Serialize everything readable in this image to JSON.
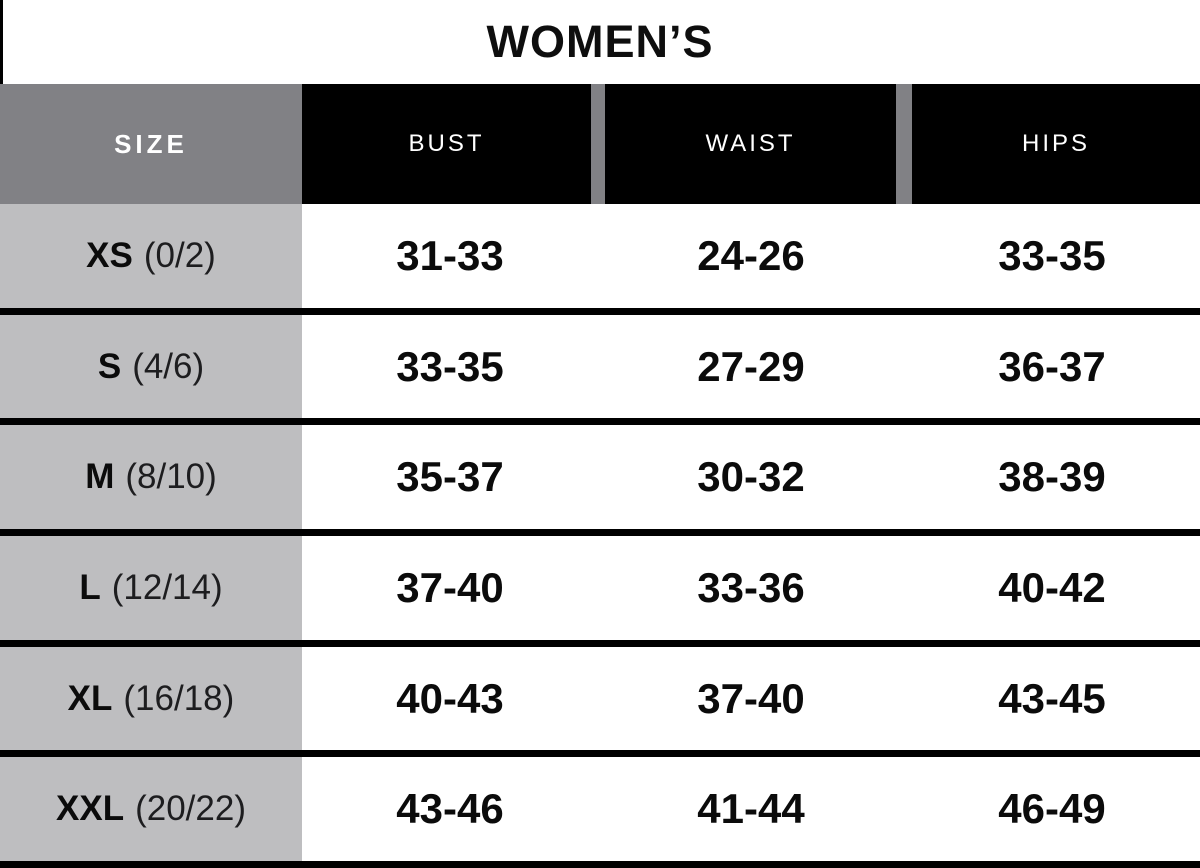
{
  "title": "WOMEN’S",
  "colors": {
    "header_gray": "#818185",
    "body_gray": "#bebec0",
    "black": "#000000",
    "white": "#ffffff"
  },
  "table": {
    "headers": [
      "SIZE",
      "BUST",
      "WAIST",
      "HIPS"
    ],
    "rows": [
      {
        "size": "XS",
        "size_detail": "(0/2)",
        "bust": "31-33",
        "waist": "24-26",
        "hips": "33-35"
      },
      {
        "size": "S",
        "size_detail": "(4/6)",
        "bust": "33-35",
        "waist": "27-29",
        "hips": "36-37"
      },
      {
        "size": "M",
        "size_detail": "(8/10)",
        "bust": "35-37",
        "waist": "30-32",
        "hips": "38-39"
      },
      {
        "size": "L",
        "size_detail": "(12/14)",
        "bust": "37-40",
        "waist": "33-36",
        "hips": "40-42"
      },
      {
        "size": "XL",
        "size_detail": "(16/18)",
        "bust": "40-43",
        "waist": "37-40",
        "hips": "43-45"
      },
      {
        "size": "XXL",
        "size_detail": "(20/22)",
        "bust": "43-46",
        "waist": "41-44",
        "hips": "46-49"
      }
    ]
  },
  "chart_data": {
    "type": "table",
    "title": "WOMEN’S",
    "columns": [
      "SIZE",
      "BUST",
      "WAIST",
      "HIPS"
    ],
    "rows": [
      [
        "XS (0/2)",
        "31-33",
        "24-26",
        "33-35"
      ],
      [
        "S (4/6)",
        "33-35",
        "27-29",
        "36-37"
      ],
      [
        "M (8/10)",
        "35-37",
        "30-32",
        "38-39"
      ],
      [
        "L (12/14)",
        "37-40",
        "33-36",
        "40-42"
      ],
      [
        "XL (16/18)",
        "40-43",
        "37-40",
        "43-45"
      ],
      [
        "XXL (20/22)",
        "43-46",
        "41-44",
        "46-49"
      ]
    ]
  }
}
